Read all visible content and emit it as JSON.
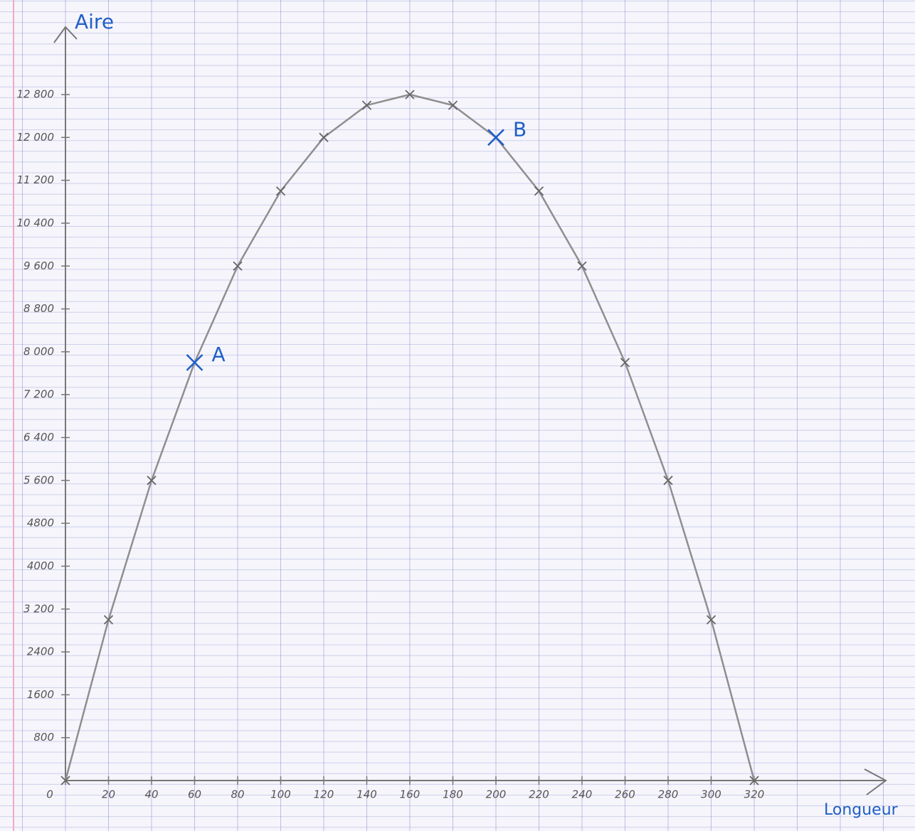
{
  "chart_data": {
    "type": "line",
    "y_label": "Aire",
    "x_label": "Longueur",
    "x": [
      0,
      20,
      40,
      60,
      80,
      100,
      120,
      140,
      160,
      180,
      200,
      220,
      240,
      260,
      280,
      300,
      320
    ],
    "series": [
      {
        "color": "#8f8f8f",
        "values": [
          0,
          3000,
          5600,
          7800,
          9600,
          11000,
          12000,
          12600,
          12800,
          12600,
          12000,
          11000,
          9600,
          7800,
          5600,
          3000,
          0
        ]
      }
    ],
    "points": [
      {
        "label": "A",
        "x": 60,
        "y": 7800,
        "color": "#1f5fc8"
      },
      {
        "label": "B",
        "x": 200,
        "y": 12000,
        "color": "#1f5fc8"
      }
    ],
    "xlim": [
      0,
      380
    ],
    "ylim": [
      0,
      14000
    ],
    "xticks": [
      0,
      20,
      40,
      60,
      80,
      100,
      120,
      140,
      160,
      180,
      200,
      220,
      240,
      260,
      280,
      300,
      320
    ],
    "yticks": [
      800,
      1600,
      2400,
      {
        "value": 3200,
        "label": "3 200"
      },
      4000,
      4800,
      {
        "value": 5600,
        "label": "5 600"
      },
      {
        "value": 6400,
        "label": "6 400"
      },
      {
        "value": 7200,
        "label": "7 200"
      },
      {
        "value": 8000,
        "label": "8 000"
      },
      {
        "value": 8800,
        "label": "8 800"
      },
      {
        "value": 9600,
        "label": "9 600"
      },
      {
        "value": 10400,
        "label": "10 400"
      },
      {
        "value": 11200,
        "label": "11 200"
      },
      {
        "value": 12000,
        "label": "12 000"
      },
      {
        "value": 12800,
        "label": "12 800"
      }
    ],
    "grid": false
  }
}
